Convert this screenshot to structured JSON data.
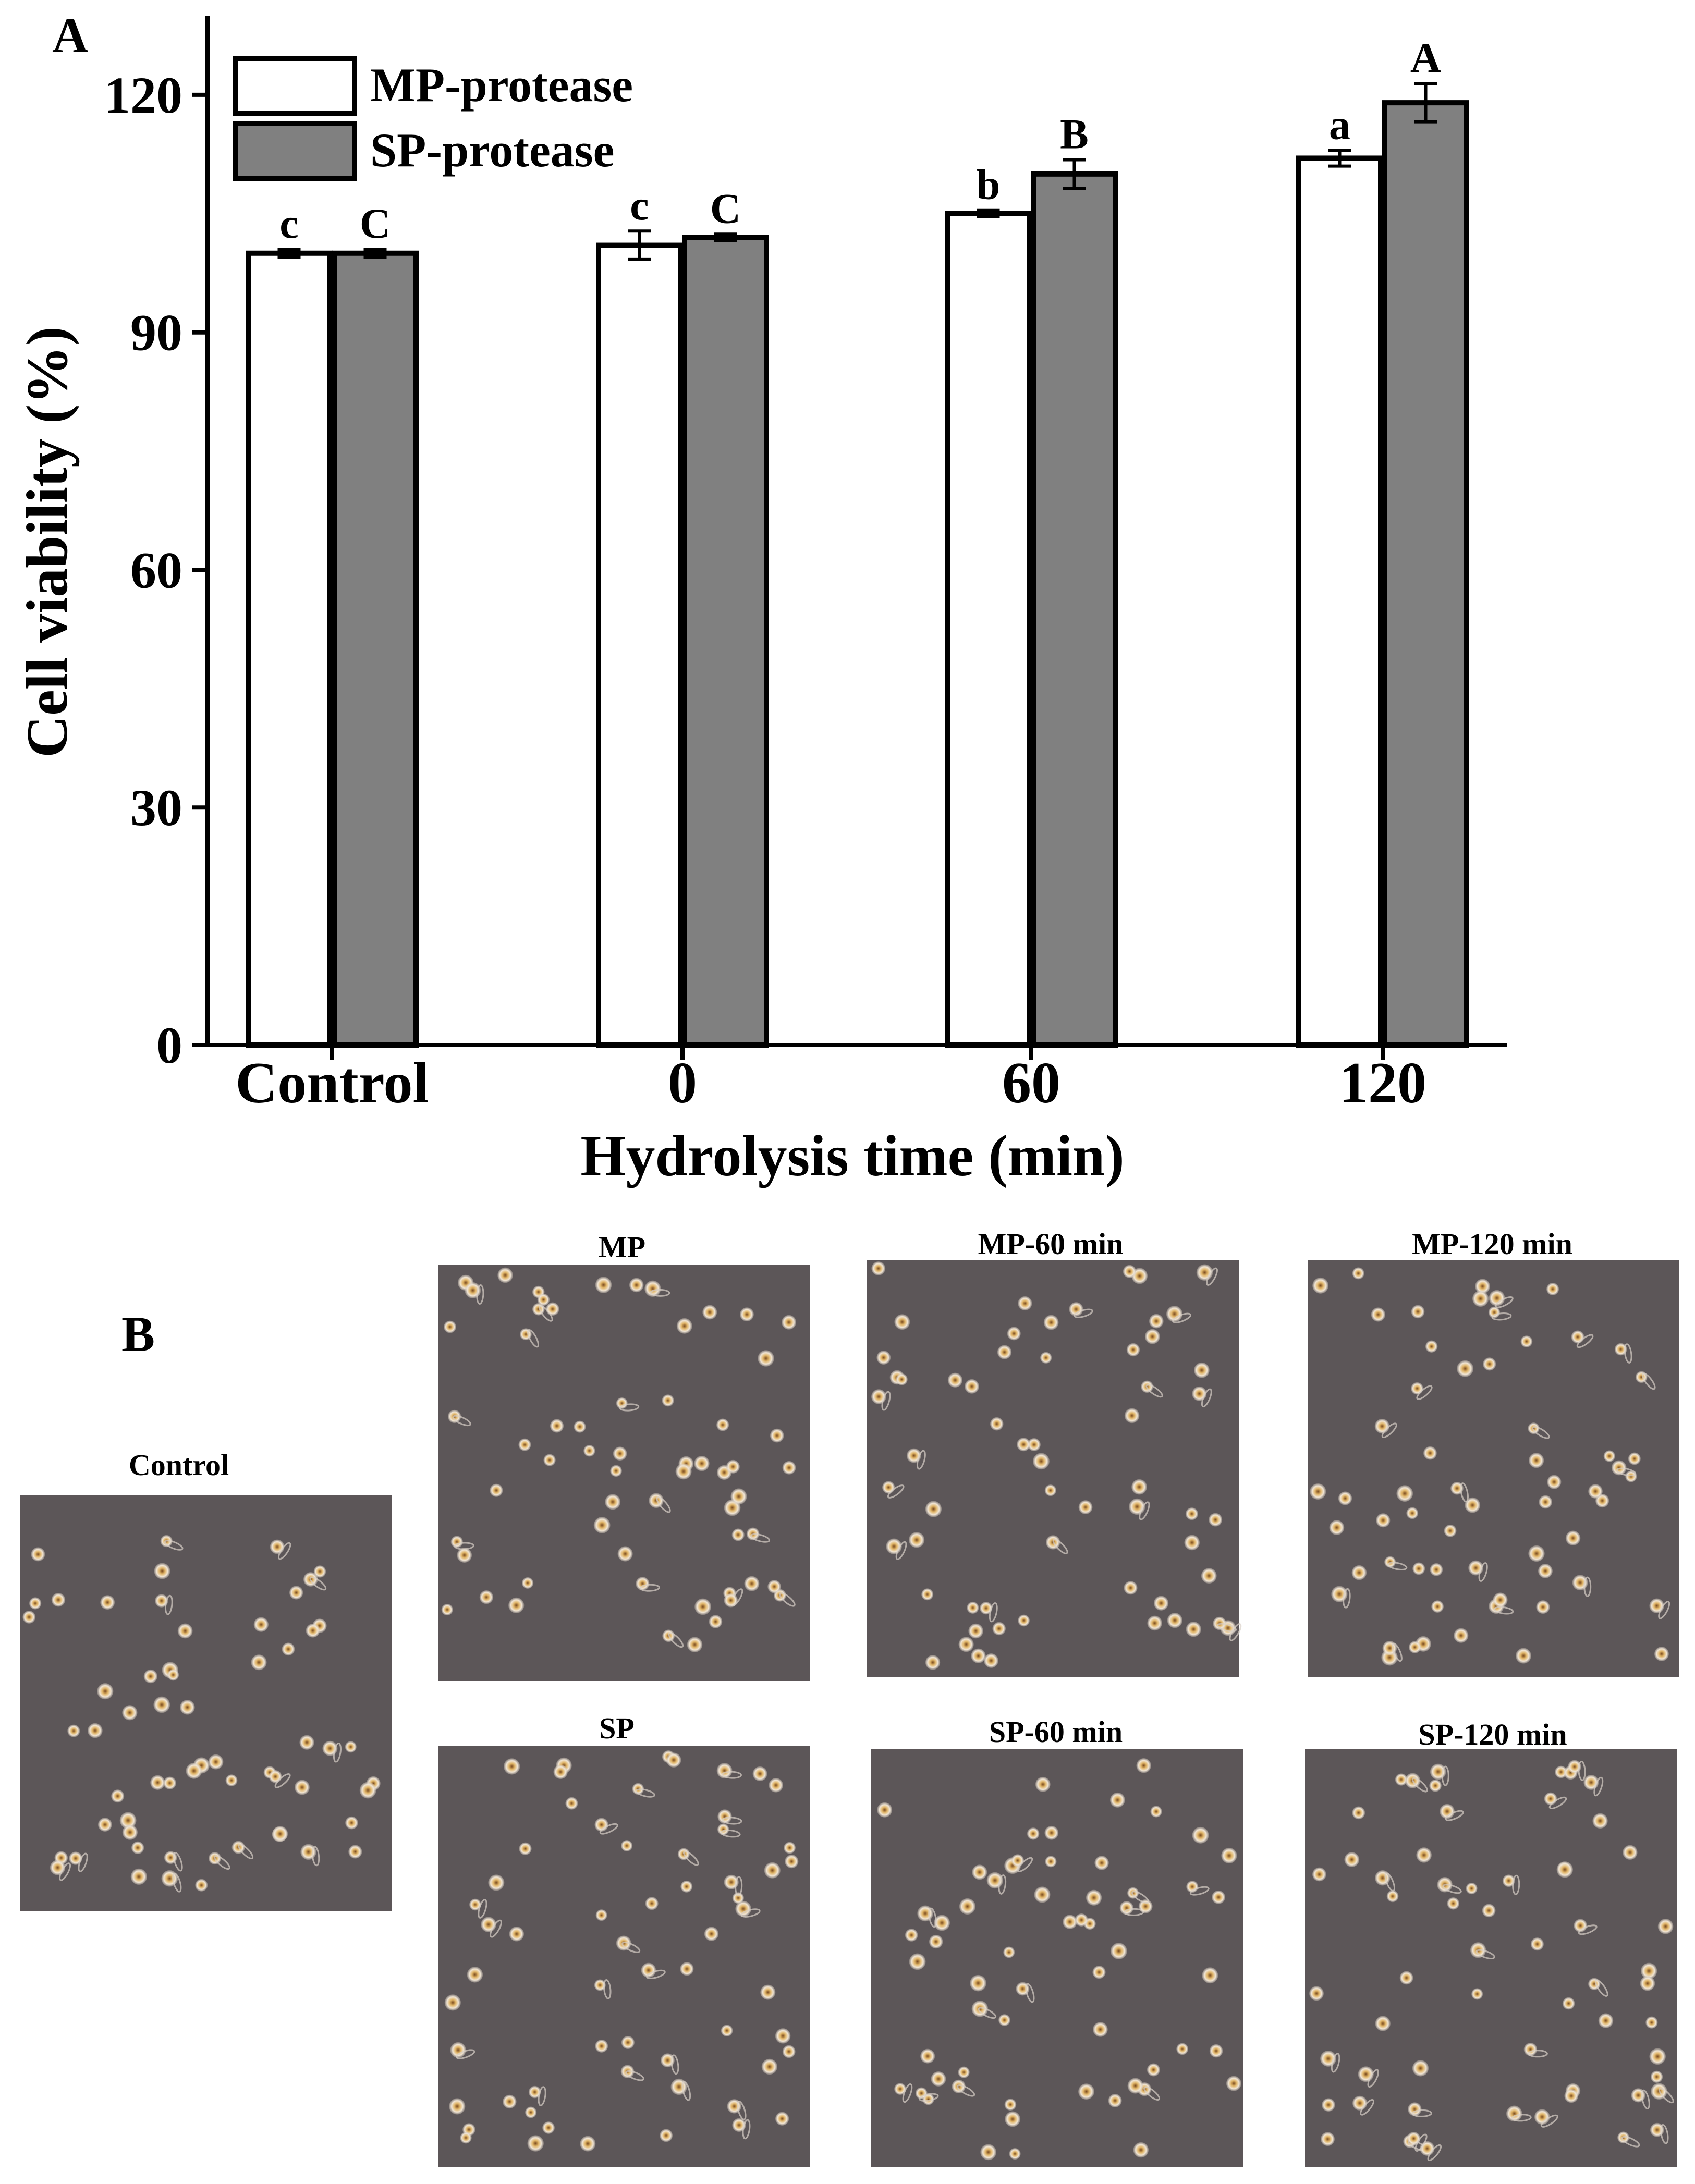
{
  "figure": {
    "panel_a_label": "A",
    "panel_b_label": "B"
  },
  "chart_data": {
    "type": "bar",
    "title": "",
    "xlabel": "Hydrolysis time (min)",
    "ylabel": "Cell viability (%)",
    "ylim": [
      0,
      130
    ],
    "yticks": [
      0,
      30,
      60,
      90,
      120
    ],
    "grid": false,
    "legend_position": "top-left",
    "categories": [
      "Control",
      "0",
      "60",
      "120"
    ],
    "series": [
      {
        "name": "MP-protease",
        "color": "#ffffff",
        "values": [
          100,
          101,
          105,
          112
        ],
        "errors": [
          0.5,
          1.8,
          0.4,
          1.0
        ],
        "letters": [
          "c",
          "c",
          "b",
          "a"
        ]
      },
      {
        "name": "SP-protease",
        "color": "#808080",
        "values": [
          100,
          102,
          110,
          119
        ],
        "errors": [
          0.5,
          0.4,
          1.8,
          2.4
        ],
        "letters": [
          "C",
          "C",
          "B",
          "A"
        ]
      }
    ]
  },
  "micrographs": [
    {
      "id": "control",
      "title": "Control"
    },
    {
      "id": "mp",
      "title": "MP"
    },
    {
      "id": "mp60",
      "title": "MP-60 min"
    },
    {
      "id": "mp120",
      "title": "MP-120 min"
    },
    {
      "id": "sp",
      "title": "SP"
    },
    {
      "id": "sp60",
      "title": "SP-60 min"
    },
    {
      "id": "sp120",
      "title": "SP-120 min"
    }
  ],
  "colors": {
    "micrograph_background": "#5c5658",
    "cell_halo": "#e8ddd0",
    "cell_core": "#b8863a"
  }
}
